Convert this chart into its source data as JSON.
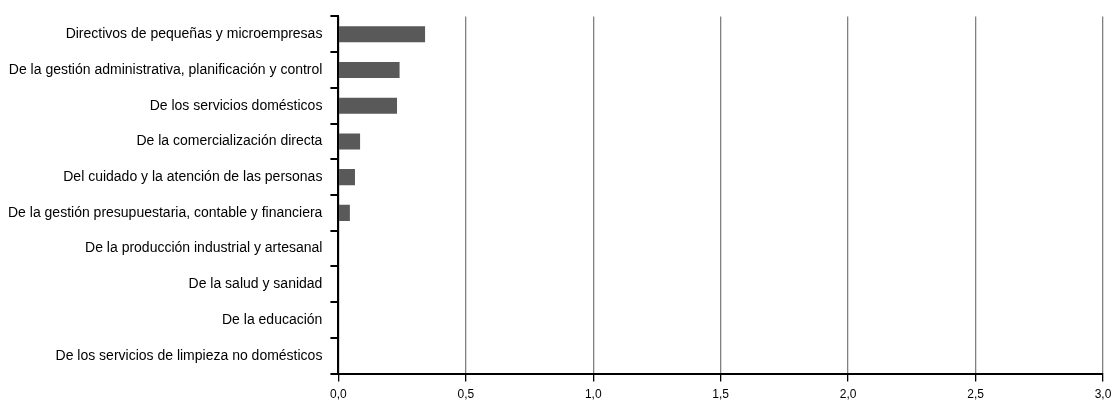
{
  "chart_data": {
    "type": "bar",
    "orientation": "horizontal",
    "categories": [
      "Directivos de pequeñas y microempresas",
      "De la gestión administrativa, planificación y control",
      "De los servicios domésticos",
      "De la comercialización directa",
      "Del cuidado y la atención de las personas",
      "De la gestión presupuestaria, contable y financiera",
      "De la producción industrial y artesanal",
      "De la salud y sanidad",
      "De la educación",
      "De los servicios de limpieza no domésticos"
    ],
    "values": [
      0.34,
      0.24,
      0.23,
      0.085,
      0.065,
      0.045,
      0,
      0,
      0,
      0
    ],
    "color": "#595959",
    "xlim": [
      0,
      3
    ],
    "xticks": [
      {
        "value": 0,
        "label": "0,0"
      },
      {
        "value": 0.5,
        "label": "0,5"
      },
      {
        "value": 1,
        "label": "1,0"
      },
      {
        "value": 1.5,
        "label": "1,5"
      },
      {
        "value": 2,
        "label": "2,0"
      },
      {
        "value": 2.5,
        "label": "2,5"
      },
      {
        "value": 3,
        "label": "3,0"
      }
    ],
    "grid": "x",
    "legend": false
  }
}
